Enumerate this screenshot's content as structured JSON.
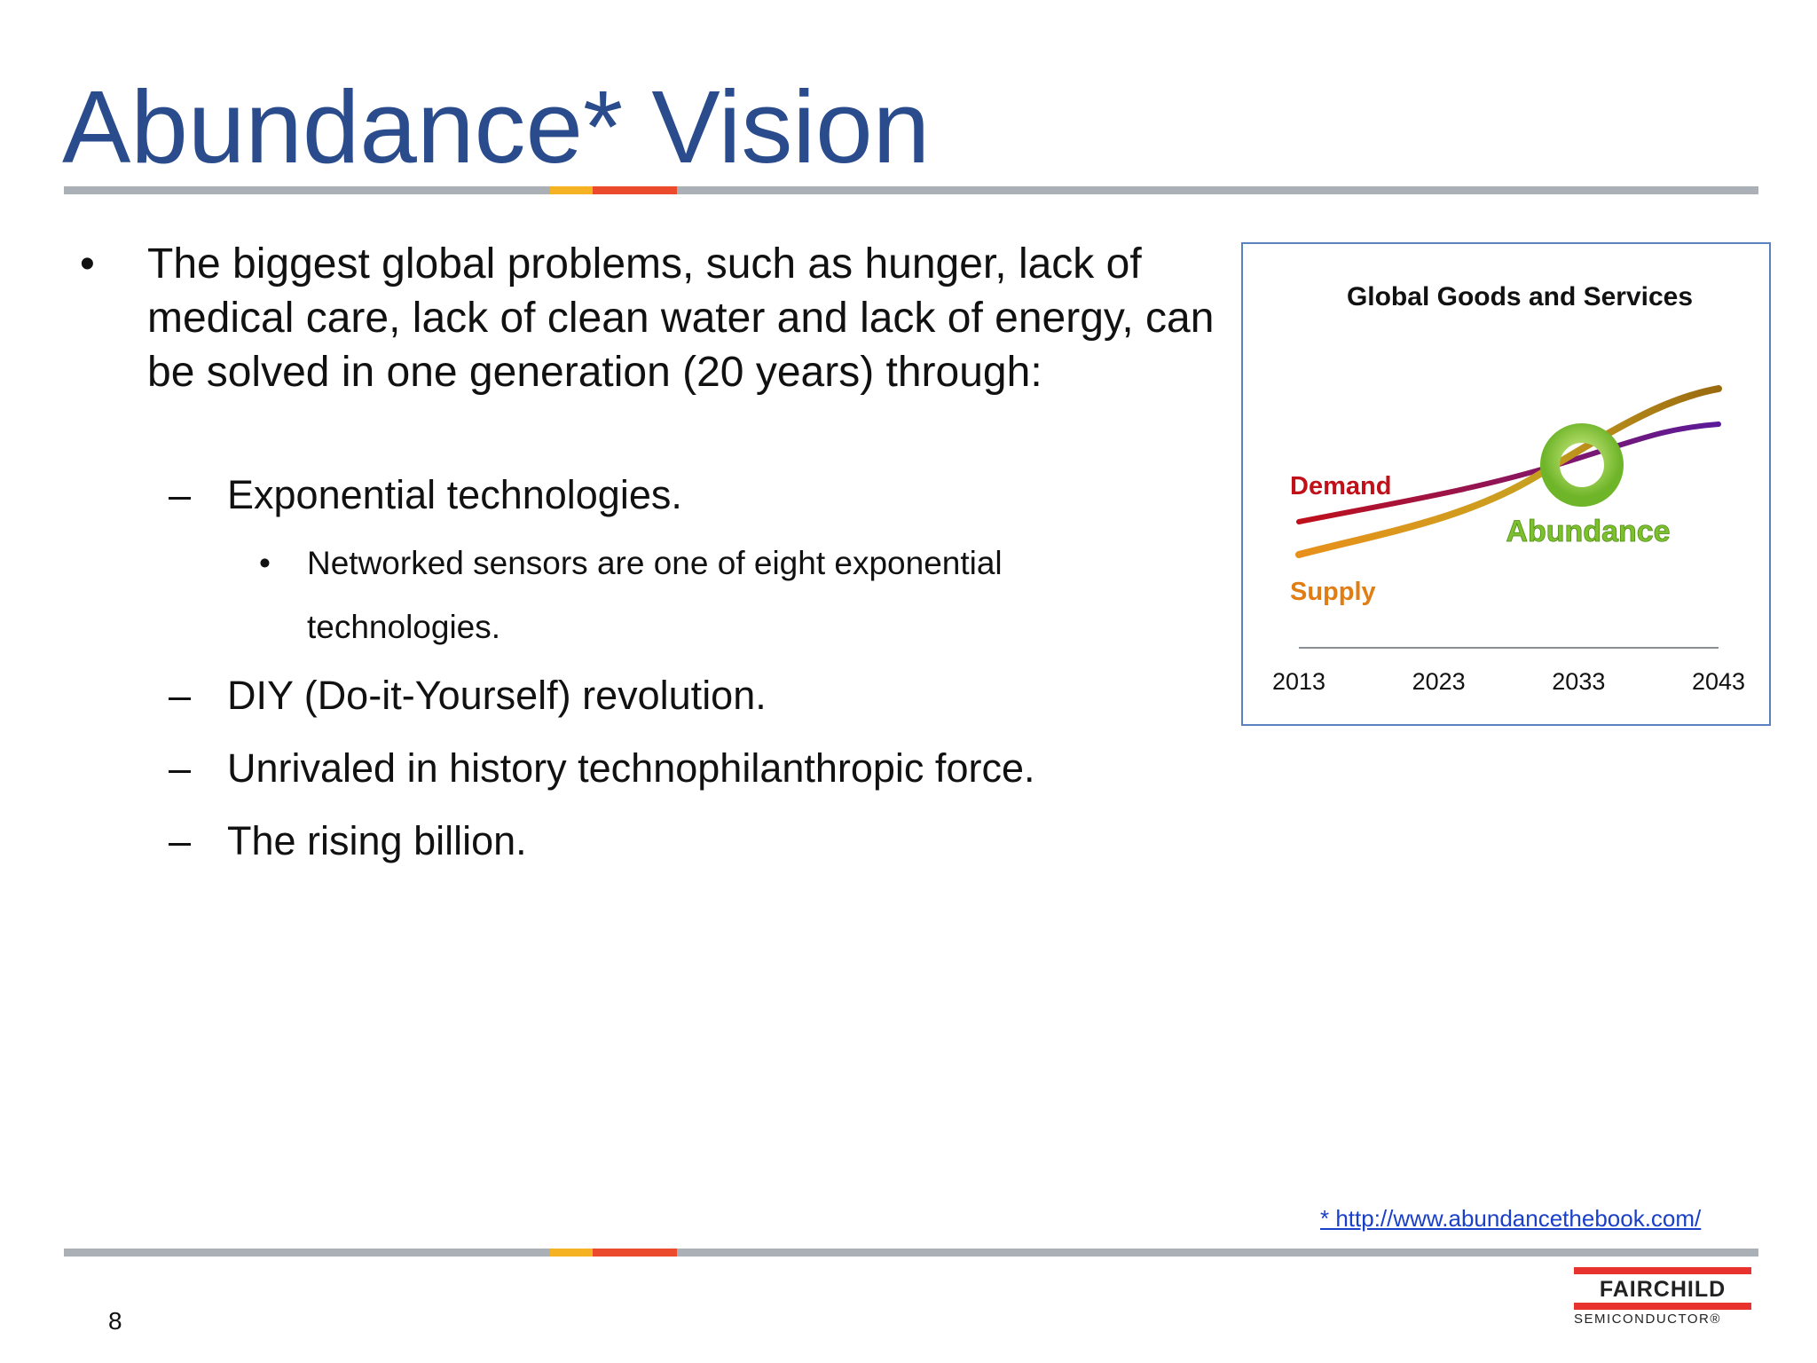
{
  "slide": {
    "title": "Abundance* Vision",
    "page_number": "8"
  },
  "content": {
    "bullet_symbol": "•",
    "dash_symbol": "–",
    "main_bullet": "The biggest global problems, such as hunger, lack of medical care, lack of clean water and lack of energy, can be solved in one generation (20 years) through:",
    "sub_items": [
      "Exponential technologies.",
      "DIY (Do-it-Yourself) revolution.",
      "Unrivaled in history technophilanthropic force.",
      "The rising billion."
    ],
    "sub_sub_item": "Networked sensors are one of eight exponential technologies."
  },
  "chart_data": {
    "type": "line",
    "title": "Global Goods and Services",
    "x": [
      2013,
      2023,
      2033,
      2043
    ],
    "xlim": [
      2013,
      2043
    ],
    "grid": false,
    "series": [
      {
        "name": "Demand",
        "color": "#c0101a",
        "end_color": "#5a1a9a"
      },
      {
        "name": "Supply",
        "color": "#e8901a",
        "end_color": "#9a6a10"
      }
    ],
    "annotation": {
      "label": "Abundance",
      "color": "#7dc22e"
    }
  },
  "footnote": {
    "text": "* http://www.abundancethebook.com/"
  },
  "logo": {
    "name": "FAIRCHILD",
    "subtitle": "SEMICONDUCTOR®",
    "color": "#e8322d"
  }
}
